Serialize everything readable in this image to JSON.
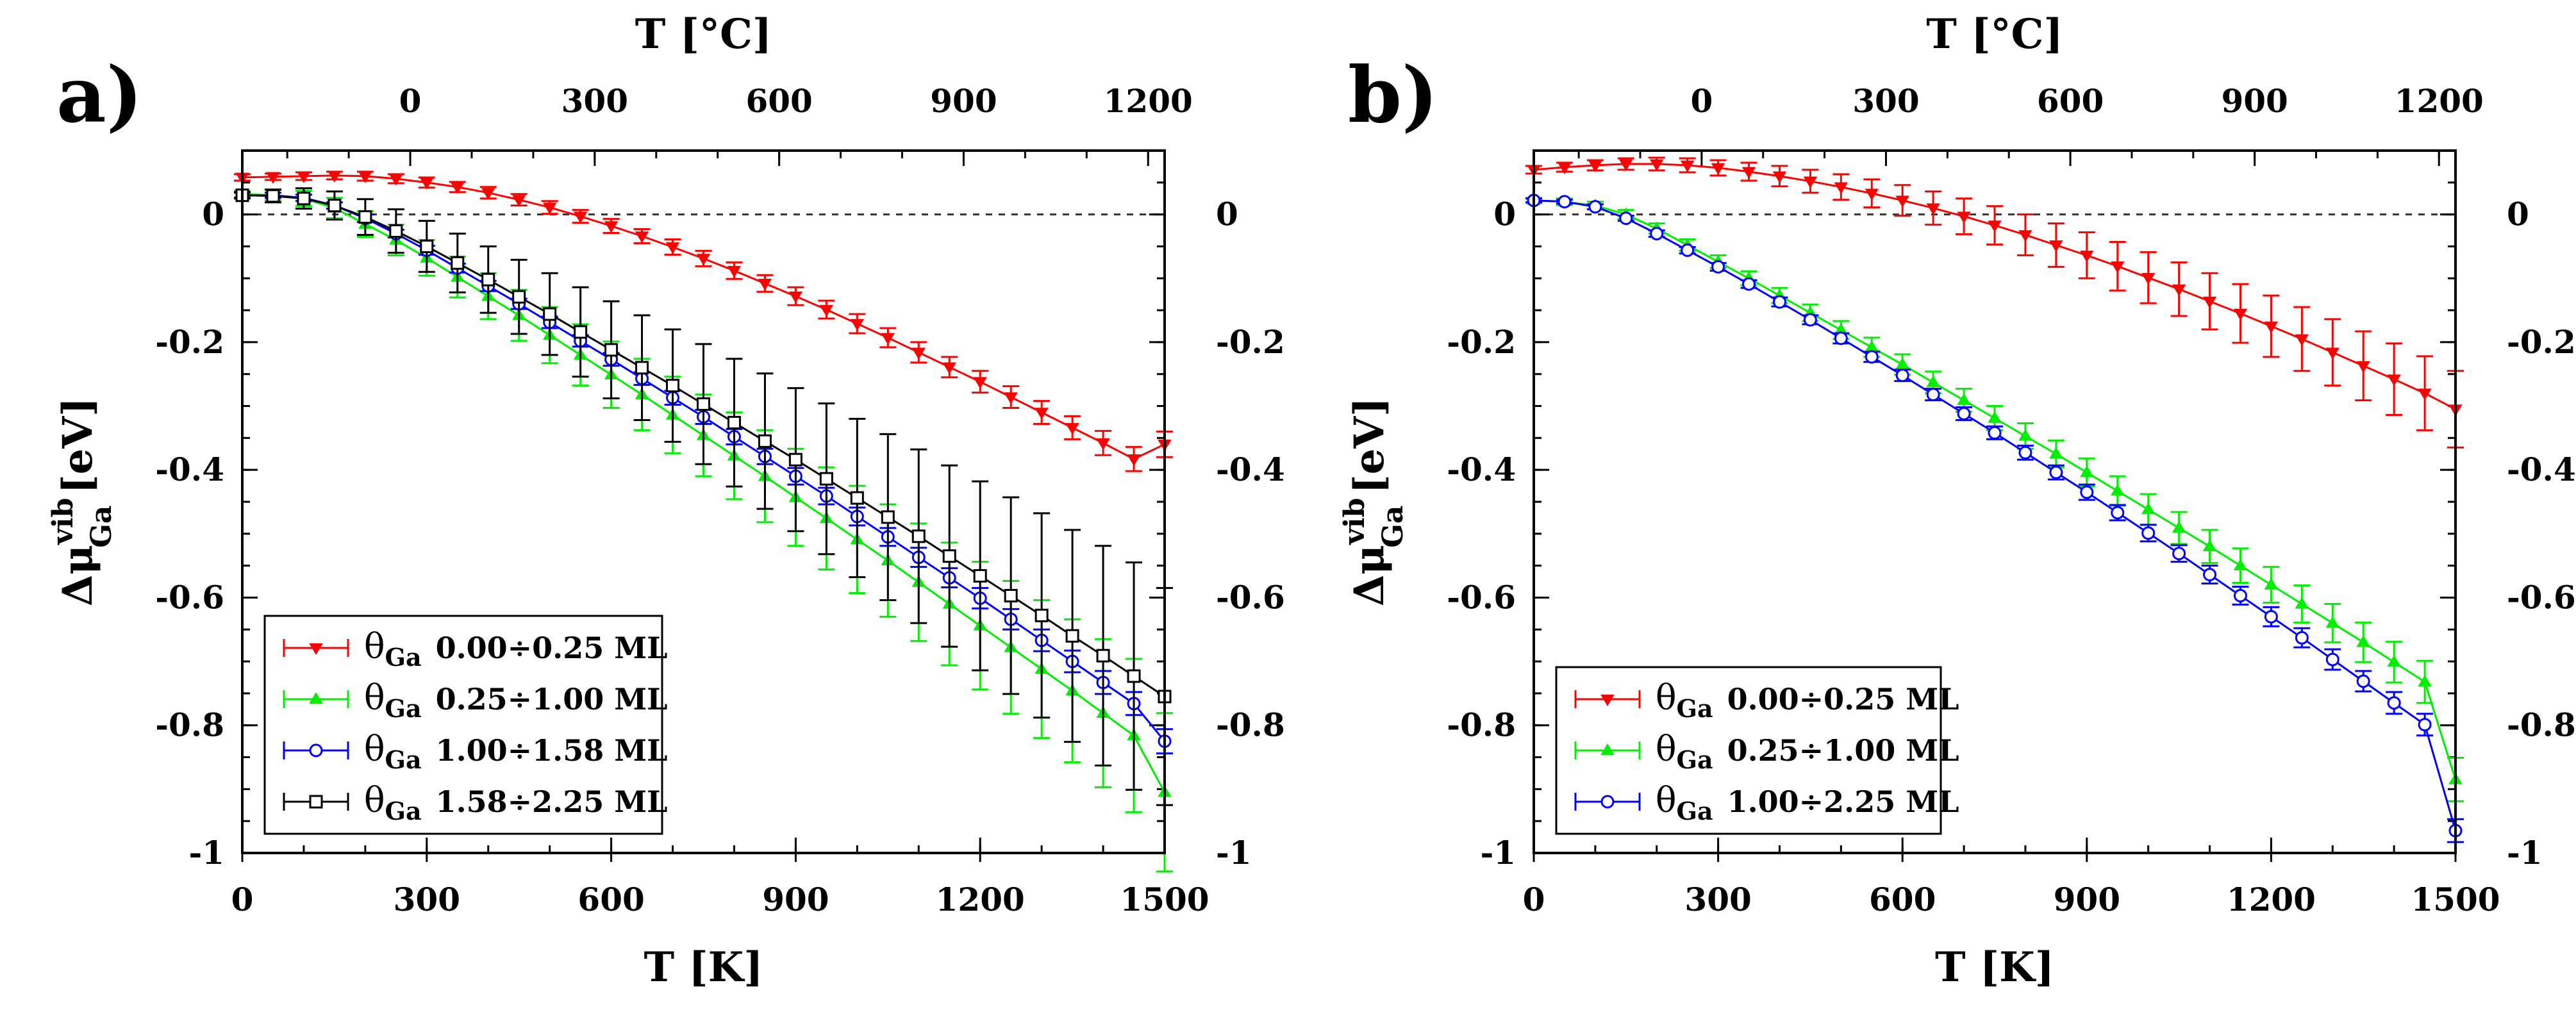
{
  "chart_data": [
    {
      "type": "line",
      "panel_label": "a)",
      "xlabel": "T [K]",
      "x2label": "T [°C]",
      "ylabel": {
        "base": "Δμ",
        "sup": "vib",
        "sub": "Ga",
        "unit": "[eV]"
      },
      "xlim": [
        0,
        1500
      ],
      "ylim": [
        -1,
        0.1
      ],
      "x2lim": [
        -273.15,
        1226.85
      ],
      "xticks": [
        0,
        300,
        600,
        900,
        1200,
        1500
      ],
      "yticks": [
        0,
        -0.2,
        -0.4,
        -0.6,
        -0.8,
        -1
      ],
      "yticklabels": [
        "0",
        "-0.2",
        "-0.4",
        "-0.6",
        "-0.8",
        "-1"
      ],
      "x2ticks": [
        0,
        300,
        600,
        900,
        1200
      ],
      "zero_line": "dashed",
      "legend_position": "bottom-left",
      "series": [
        {
          "name": "0.00÷0.25 ML",
          "theta": "θ",
          "theta_sub": "Ga",
          "color": "#ff0000",
          "marker": "triangle-down",
          "x": [
            0,
            50,
            100,
            150,
            200,
            250,
            300,
            350,
            400,
            450,
            500,
            550,
            600,
            650,
            700,
            750,
            800,
            850,
            900,
            950,
            1000,
            1050,
            1100,
            1150,
            1200,
            1250,
            1300,
            1350,
            1400,
            1450,
            1500
          ],
          "y": [
            0.058,
            0.059,
            0.06,
            0.061,
            0.06,
            0.056,
            0.05,
            0.043,
            0.034,
            0.023,
            0.011,
            -0.003,
            -0.018,
            -0.034,
            -0.051,
            -0.069,
            -0.088,
            -0.108,
            -0.128,
            -0.149,
            -0.171,
            -0.193,
            -0.216,
            -0.239,
            -0.262,
            -0.286,
            -0.31,
            -0.334,
            -0.358,
            -0.383,
            -0.36
          ],
          "err": [
            0.005,
            0.005,
            0.006,
            0.006,
            0.007,
            0.007,
            0.008,
            0.008,
            0.009,
            0.009,
            0.01,
            0.01,
            0.011,
            0.011,
            0.012,
            0.012,
            0.013,
            0.013,
            0.014,
            0.014,
            0.015,
            0.015,
            0.016,
            0.016,
            0.017,
            0.017,
            0.018,
            0.018,
            0.019,
            0.019,
            0.02
          ]
        },
        {
          "name": "0.25÷1.00 ML",
          "theta": "θ",
          "theta_sub": "Ga",
          "color": "#00ee00",
          "marker": "triangle-up",
          "x": [
            0,
            50,
            100,
            150,
            200,
            250,
            300,
            350,
            400,
            450,
            500,
            550,
            600,
            650,
            700,
            750,
            800,
            850,
            900,
            950,
            1000,
            1050,
            1100,
            1150,
            1200,
            1250,
            1300,
            1350,
            1400,
            1450,
            1500
          ],
          "y": [
            0.032,
            0.03,
            0.025,
            0.01,
            -0.015,
            -0.04,
            -0.068,
            -0.098,
            -0.128,
            -0.158,
            -0.189,
            -0.22,
            -0.251,
            -0.282,
            -0.314,
            -0.346,
            -0.378,
            -0.41,
            -0.443,
            -0.476,
            -0.509,
            -0.542,
            -0.576,
            -0.61,
            -0.644,
            -0.678,
            -0.712,
            -0.746,
            -0.781,
            -0.816,
            -0.905
          ],
          "err": [
            0.005,
            0.008,
            0.012,
            0.016,
            0.02,
            0.024,
            0.028,
            0.032,
            0.036,
            0.04,
            0.044,
            0.048,
            0.052,
            0.056,
            0.06,
            0.064,
            0.068,
            0.072,
            0.076,
            0.08,
            0.084,
            0.088,
            0.092,
            0.096,
            0.1,
            0.104,
            0.108,
            0.112,
            0.116,
            0.12,
            0.124
          ]
        },
        {
          "name": "1.00÷1.58 ML",
          "theta": "θ",
          "theta_sub": "Ga",
          "color": "#0000ff",
          "marker": "circle",
          "x": [
            0,
            50,
            100,
            150,
            200,
            250,
            300,
            350,
            400,
            450,
            500,
            550,
            600,
            650,
            700,
            750,
            800,
            850,
            900,
            950,
            1000,
            1050,
            1100,
            1150,
            1200,
            1250,
            1300,
            1350,
            1400,
            1450,
            1500
          ],
          "y": [
            0.03,
            0.03,
            0.026,
            0.014,
            -0.006,
            -0.03,
            -0.056,
            -0.084,
            -0.112,
            -0.14,
            -0.169,
            -0.198,
            -0.227,
            -0.257,
            -0.287,
            -0.317,
            -0.348,
            -0.379,
            -0.41,
            -0.441,
            -0.473,
            -0.505,
            -0.537,
            -0.569,
            -0.601,
            -0.634,
            -0.667,
            -0.7,
            -0.733,
            -0.766,
            -0.825
          ],
          "err": [
            0.004,
            0.004,
            0.005,
            0.005,
            0.006,
            0.006,
            0.007,
            0.007,
            0.008,
            0.008,
            0.009,
            0.009,
            0.01,
            0.01,
            0.011,
            0.011,
            0.012,
            0.012,
            0.013,
            0.013,
            0.014,
            0.014,
            0.015,
            0.015,
            0.016,
            0.016,
            0.017,
            0.017,
            0.018,
            0.018,
            0.019
          ]
        },
        {
          "name": "1.58÷2.25 ML",
          "theta": "θ",
          "theta_sub": "Ga",
          "color": "#000000",
          "marker": "square",
          "x": [
            0,
            50,
            100,
            150,
            200,
            250,
            300,
            350,
            400,
            450,
            500,
            550,
            600,
            650,
            700,
            750,
            800,
            850,
            900,
            950,
            1000,
            1050,
            1100,
            1150,
            1200,
            1250,
            1300,
            1350,
            1400,
            1450,
            1500
          ],
          "y": [
            0.03,
            0.029,
            0.025,
            0.014,
            -0.004,
            -0.026,
            -0.05,
            -0.076,
            -0.102,
            -0.129,
            -0.156,
            -0.184,
            -0.212,
            -0.24,
            -0.268,
            -0.297,
            -0.326,
            -0.355,
            -0.384,
            -0.414,
            -0.444,
            -0.474,
            -0.504,
            -0.535,
            -0.566,
            -0.597,
            -0.628,
            -0.66,
            -0.691,
            -0.723,
            -0.755
          ],
          "err": [
            0.005,
            0.01,
            0.016,
            0.022,
            0.028,
            0.034,
            0.04,
            0.046,
            0.052,
            0.058,
            0.064,
            0.07,
            0.076,
            0.082,
            0.088,
            0.094,
            0.1,
            0.106,
            0.112,
            0.118,
            0.124,
            0.13,
            0.136,
            0.142,
            0.148,
            0.154,
            0.16,
            0.166,
            0.172,
            0.178,
            0.17
          ]
        }
      ]
    },
    {
      "type": "line",
      "panel_label": "b)",
      "xlabel": "T [K]",
      "x2label": "T [°C]",
      "ylabel": {
        "base": "Δμ",
        "sup": "vib",
        "sub": "Ga",
        "unit": "[eV]"
      },
      "xlim": [
        0,
        1500
      ],
      "ylim": [
        -1,
        0.1
      ],
      "x2lim": [
        -273.15,
        1226.85
      ],
      "xticks": [
        0,
        300,
        600,
        900,
        1200,
        1500
      ],
      "yticks": [
        0,
        -0.2,
        -0.4,
        -0.6,
        -0.8,
        -1
      ],
      "yticklabels": [
        "0",
        "-0.2",
        "-0.4",
        "-0.6",
        "-0.8",
        "-1"
      ],
      "x2ticks": [
        0,
        300,
        600,
        900,
        1200
      ],
      "zero_line": "dashed",
      "legend_position": "bottom-left",
      "series": [
        {
          "name": "0.00÷0.25 ML",
          "theta": "θ",
          "theta_sub": "Ga",
          "color": "#ff0000",
          "marker": "triangle-down",
          "x": [
            0,
            50,
            100,
            150,
            200,
            250,
            300,
            350,
            400,
            450,
            500,
            550,
            600,
            650,
            700,
            750,
            800,
            850,
            900,
            950,
            1000,
            1050,
            1100,
            1150,
            1200,
            1250,
            1300,
            1350,
            1400,
            1450,
            1500
          ],
          "y": [
            0.07,
            0.074,
            0.077,
            0.079,
            0.079,
            0.077,
            0.073,
            0.067,
            0.06,
            0.052,
            0.043,
            0.033,
            0.022,
            0.01,
            -0.003,
            -0.017,
            -0.032,
            -0.048,
            -0.064,
            -0.081,
            -0.099,
            -0.117,
            -0.136,
            -0.155,
            -0.175,
            -0.195,
            -0.216,
            -0.237,
            -0.258,
            -0.28,
            -0.305
          ],
          "err": [
            0.006,
            0.007,
            0.008,
            0.009,
            0.01,
            0.011,
            0.012,
            0.014,
            0.016,
            0.018,
            0.02,
            0.022,
            0.024,
            0.026,
            0.028,
            0.03,
            0.032,
            0.034,
            0.036,
            0.038,
            0.04,
            0.042,
            0.044,
            0.046,
            0.048,
            0.05,
            0.052,
            0.054,
            0.056,
            0.058,
            0.06
          ]
        },
        {
          "name": "0.25÷1.00 ML",
          "theta": "θ",
          "theta_sub": "Ga",
          "color": "#00ee00",
          "marker": "triangle-up",
          "x": [
            0,
            50,
            100,
            150,
            200,
            250,
            300,
            350,
            400,
            450,
            500,
            550,
            600,
            650,
            700,
            750,
            800,
            850,
            900,
            950,
            1000,
            1050,
            1100,
            1150,
            1200,
            1250,
            1300,
            1350,
            1400,
            1450,
            1500
          ],
          "y": [
            0.022,
            0.02,
            0.014,
            0.0,
            -0.022,
            -0.048,
            -0.074,
            -0.1,
            -0.127,
            -0.154,
            -0.181,
            -0.208,
            -0.235,
            -0.263,
            -0.291,
            -0.319,
            -0.347,
            -0.375,
            -0.404,
            -0.433,
            -0.462,
            -0.491,
            -0.52,
            -0.55,
            -0.58,
            -0.61,
            -0.64,
            -0.67,
            -0.701,
            -0.732,
            -0.885
          ],
          "err": [
            0.004,
            0.005,
            0.006,
            0.007,
            0.008,
            0.009,
            0.01,
            0.011,
            0.012,
            0.013,
            0.014,
            0.015,
            0.016,
            0.017,
            0.018,
            0.019,
            0.02,
            0.021,
            0.022,
            0.023,
            0.024,
            0.025,
            0.026,
            0.027,
            0.028,
            0.029,
            0.03,
            0.031,
            0.032,
            0.033,
            0.034
          ]
        },
        {
          "name": "1.00÷2.25 ML",
          "theta": "θ",
          "theta_sub": "Ga",
          "color": "#0000ff",
          "marker": "circle",
          "x": [
            0,
            50,
            100,
            150,
            200,
            250,
            300,
            350,
            400,
            450,
            500,
            550,
            600,
            650,
            700,
            750,
            800,
            850,
            900,
            950,
            1000,
            1050,
            1100,
            1150,
            1200,
            1250,
            1300,
            1350,
            1400,
            1450,
            1500
          ],
          "y": [
            0.022,
            0.02,
            0.012,
            -0.006,
            -0.03,
            -0.056,
            -0.082,
            -0.109,
            -0.137,
            -0.165,
            -0.194,
            -0.223,
            -0.252,
            -0.282,
            -0.312,
            -0.342,
            -0.373,
            -0.404,
            -0.435,
            -0.467,
            -0.499,
            -0.531,
            -0.564,
            -0.597,
            -0.63,
            -0.663,
            -0.697,
            -0.731,
            -0.765,
            -0.799,
            -0.965
          ],
          "err": [
            0.003,
            0.003,
            0.004,
            0.004,
            0.005,
            0.005,
            0.006,
            0.006,
            0.007,
            0.007,
            0.008,
            0.008,
            0.009,
            0.009,
            0.01,
            0.01,
            0.011,
            0.011,
            0.012,
            0.012,
            0.013,
            0.013,
            0.014,
            0.014,
            0.015,
            0.015,
            0.016,
            0.016,
            0.017,
            0.017,
            0.018
          ]
        }
      ]
    }
  ]
}
